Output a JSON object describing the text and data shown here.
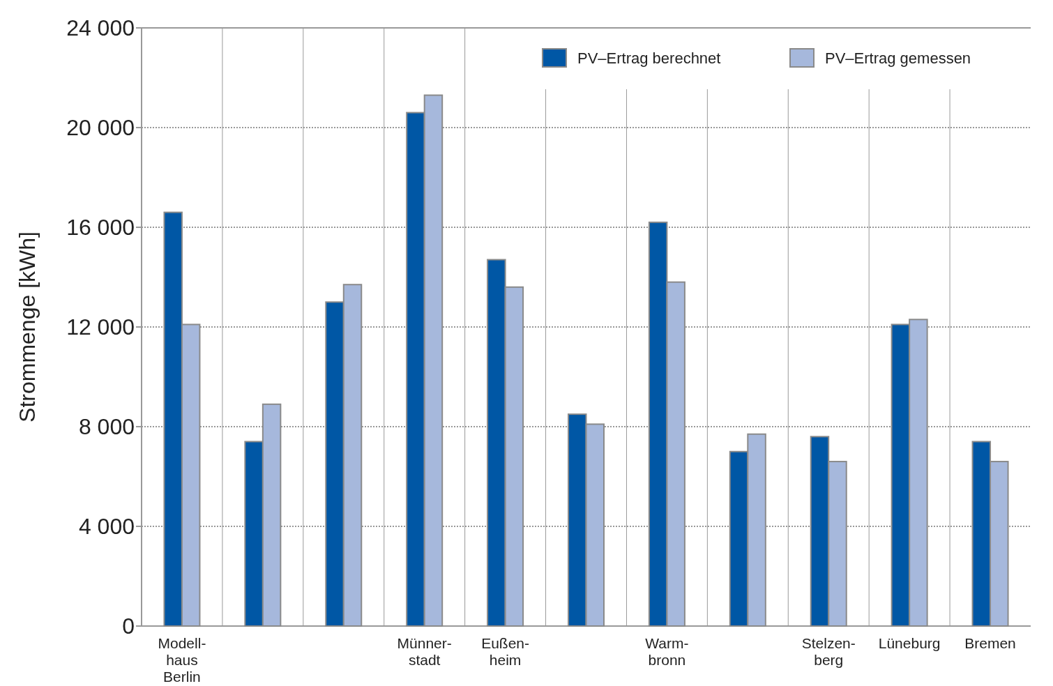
{
  "chart_data": {
    "type": "bar",
    "ylabel": "Strommenge [kWh]",
    "categories": [
      "Modell-\nhaus\nBerlin",
      null,
      null,
      "Münner-\nstadt",
      "Eußen-\nheim",
      null,
      "Warm-\nbronn",
      null,
      "Stelzen-\nberg",
      "Lüneburg",
      "Bremen"
    ],
    "series": [
      {
        "name": "PV–Ertrag berechnet",
        "color": "#0057a5",
        "values": [
          16600,
          7400,
          13000,
          20600,
          14700,
          8500,
          16200,
          7000,
          7600,
          12100,
          7400
        ]
      },
      {
        "name": "PV–Ertrag gemessen",
        "color": "#a6b8dc",
        "values": [
          12100,
          8900,
          13700,
          21300,
          13600,
          8100,
          13800,
          7700,
          6600,
          12300,
          6600
        ]
      }
    ],
    "ylim": [
      0,
      24000
    ],
    "yticks": [
      0,
      {
        "value": 4000,
        "label": "4 000"
      },
      {
        "value": 8000,
        "label": "8 000"
      },
      {
        "value": 12000,
        "label": "12 000"
      },
      {
        "value": 16000,
        "label": "16 000"
      },
      {
        "value": 20000,
        "label": "20 000"
      },
      {
        "value": 24000,
        "label": "24 000"
      }
    ],
    "grid": "y",
    "legend": "top right"
  }
}
